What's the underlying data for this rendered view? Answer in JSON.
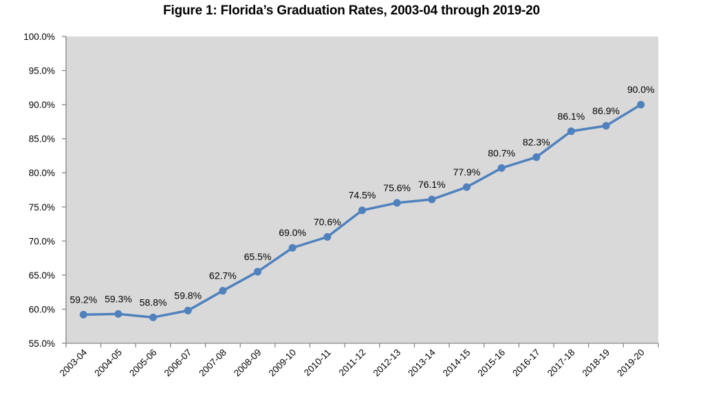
{
  "chart_data": {
    "type": "line",
    "title": "Figure 1: Florida’s Graduation Rates, 2003-04 through 2019-20",
    "xlabel": "",
    "ylabel": "",
    "categories": [
      "2003-04",
      "2004-05",
      "2005-06",
      "2006-07",
      "2007-08",
      "2008-09",
      "2009-10",
      "2010-11",
      "2011-12",
      "2012-13",
      "2013-14",
      "2014-15",
      "2015-16",
      "2016-17",
      "2017-18",
      "2018-19",
      "2019-20"
    ],
    "series": [
      {
        "name": "Graduation Rate",
        "color": "#4f81bd",
        "values": [
          59.2,
          59.3,
          58.8,
          59.8,
          62.7,
          65.5,
          69.0,
          70.6,
          74.5,
          75.6,
          76.1,
          77.9,
          80.7,
          82.3,
          86.1,
          86.9,
          90.0
        ],
        "labels": [
          "59.2%",
          "59.3%",
          "58.8%",
          "59.8%",
          "62.7%",
          "65.5%",
          "69.0%",
          "70.6%",
          "74.5%",
          "75.6%",
          "76.1%",
          "77.9%",
          "80.7%",
          "82.3%",
          "86.1%",
          "86.9%",
          "90.0%"
        ]
      }
    ],
    "ylim": [
      55,
      100
    ],
    "yticks": [
      55,
      60,
      65,
      70,
      75,
      80,
      85,
      90,
      95,
      100
    ],
    "ytick_labels": [
      "55.0%",
      "60.0%",
      "65.0%",
      "70.0%",
      "75.0%",
      "80.0%",
      "85.0%",
      "90.0%",
      "95.0%",
      "100.0%"
    ],
    "grid": false,
    "legend": "none",
    "plot_background": "#d9d9d9"
  }
}
